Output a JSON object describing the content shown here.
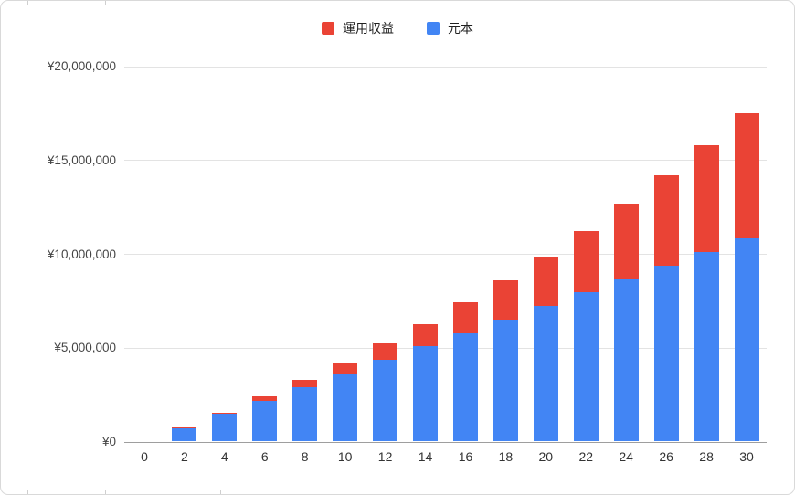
{
  "chart": {
    "background": "#ffffff",
    "border_color": "#d9d9d9"
  },
  "legend": {
    "items": [
      {
        "id": "returns",
        "label": "運用収益",
        "color": "#EA4335"
      },
      {
        "id": "principal",
        "label": "元本",
        "color": "#4285F4"
      }
    ]
  },
  "chart_data": {
    "type": "bar",
    "stacked": true,
    "title": "",
    "xlabel": "",
    "ylabel": "",
    "categories": [
      0,
      2,
      4,
      6,
      8,
      10,
      12,
      14,
      16,
      18,
      20,
      22,
      24,
      26,
      28,
      30
    ],
    "series": [
      {
        "name": "元本",
        "color": "#4285F4",
        "values": [
          0,
          720000,
          1440000,
          2160000,
          2880000,
          3600000,
          4320000,
          5040000,
          5760000,
          6480000,
          7200000,
          7920000,
          8640000,
          9360000,
          10080000,
          10800000
        ]
      },
      {
        "name": "運用収益",
        "color": "#EA4335",
        "values": [
          0,
          21000,
          88000,
          203000,
          371000,
          592000,
          872000,
          1214000,
          1621000,
          2098000,
          2649000,
          3278000,
          3991000,
          4792000,
          5687000,
          6682000
        ]
      }
    ],
    "ylim": [
      0,
      20000000
    ],
    "yticks": [
      0,
      5000000,
      10000000,
      15000000,
      20000000
    ],
    "ytick_labels": [
      "¥0",
      "¥5,000,000",
      "¥10,000,000",
      "¥15,000,000",
      "¥20,000,000"
    ],
    "ytick_prefix": "¥",
    "grid": true,
    "legend_position": "top"
  }
}
